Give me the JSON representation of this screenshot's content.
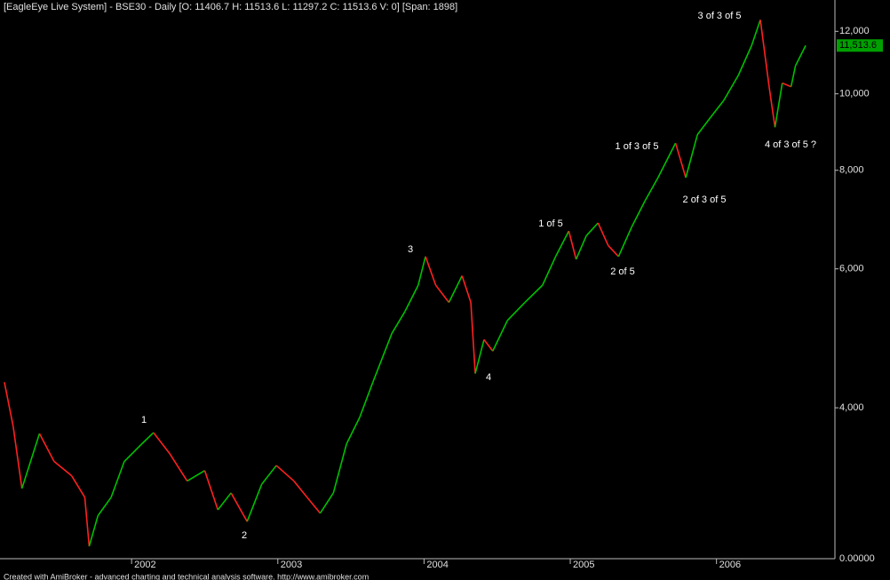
{
  "chart_data": {
    "type": "line",
    "title": "[EagleEye Live System] - BSE30 - Daily [O: 11406.7 H: 11513.6 L: 11297.2 C: 11513.6 V: 0] [Span: 1898]",
    "footer": "Created with AmiBroker - advanced charting and technical analysis software. http://www.amibroker.com",
    "log_scale": true,
    "up_color": "#00c000",
    "down_color": "#ff2020",
    "x": [
      2001.13,
      2001.19,
      2001.25,
      2001.37,
      2001.47,
      2001.59,
      2001.68,
      2001.71,
      2001.77,
      2001.86,
      2001.95,
      2002.07,
      2002.15,
      2002.26,
      2002.38,
      2002.5,
      2002.59,
      2002.68,
      2002.79,
      2002.89,
      2002.99,
      2003.11,
      2003.2,
      2003.29,
      2003.38,
      2003.47,
      2003.56,
      2003.65,
      2003.78,
      2003.87,
      2003.96,
      2004.01,
      2004.08,
      2004.17,
      2004.26,
      2004.32,
      2004.35,
      2004.41,
      2004.47,
      2004.57,
      2004.69,
      2004.81,
      2004.9,
      2004.99,
      2005.04,
      2005.11,
      2005.19,
      2005.26,
      2005.33,
      2005.42,
      2005.51,
      2005.6,
      2005.72,
      2005.79,
      2005.87,
      2005.96,
      2006.05,
      2006.15,
      2006.24,
      2006.3,
      2006.36,
      2006.4,
      2006.45,
      2006.51,
      2006.54,
      2006.61
    ],
    "series": [
      {
        "name": "BSE30",
        "color": "#e0e0e0",
        "values": [
          4310,
          3790,
          3160,
          3710,
          3420,
          3280,
          3080,
          2670,
          2920,
          3080,
          3420,
          3600,
          3720,
          3500,
          3230,
          3330,
          2970,
          3120,
          2870,
          3200,
          3380,
          3230,
          3080,
          2940,
          3120,
          3600,
          3890,
          4310,
          4970,
          5300,
          5720,
          6220,
          5720,
          5440,
          5880,
          5440,
          4420,
          4880,
          4720,
          5160,
          5440,
          5720,
          6220,
          6700,
          6170,
          6610,
          6860,
          6420,
          6220,
          6780,
          7310,
          7830,
          8660,
          7830,
          8880,
          9340,
          9810,
          10560,
          11510,
          12410,
          10210,
          9070,
          10320,
          10210,
          10850,
          11513.6
        ]
      }
    ],
    "xlim": [
      2001.1,
      2006.81
    ],
    "xticks": [
      2002,
      2003,
      2004,
      2005,
      2006
    ],
    "ylim": [
      2575,
      13150
    ],
    "yticks": [
      {
        "value": 4000,
        "label": "4,000"
      },
      {
        "value": 6000,
        "label": "6,000"
      },
      {
        "value": 8000,
        "label": "8,000"
      },
      {
        "value": 10000,
        "label": "10,000"
      },
      {
        "value": 12000,
        "label": "12,000"
      }
    ],
    "y_axis_bottom_label": "0.00000",
    "last_price": {
      "value": 11513.6,
      "label": "11,513.6"
    },
    "annotations": [
      "1",
      "2",
      "3",
      "4",
      "1 of 5",
      "2 of 5",
      "1 of 3 of 5",
      "2 of 3 of 5",
      "3 of 3 of 5",
      "4 of 3 of 5 ?"
    ]
  }
}
